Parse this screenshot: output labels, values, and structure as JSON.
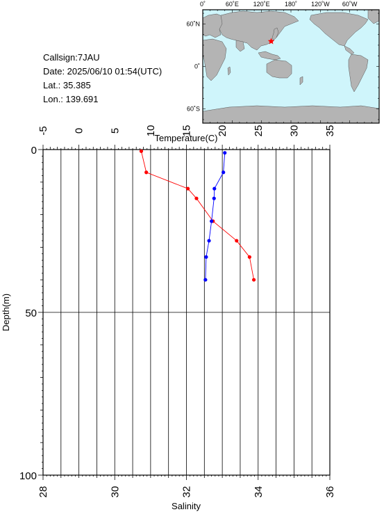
{
  "info": {
    "callsign": "Callsign:7JAU",
    "date": "Date:  2025/06/10 01:54(UTC)",
    "lat": "Lat.:  35.385",
    "lon": "Lon.:  139.691"
  },
  "map": {
    "top_labels": [
      "0˚",
      "60˚E",
      "120˚E",
      "180˚",
      "120˚W",
      "60˚W"
    ],
    "lat_labels": [
      "60˚N",
      "0˚",
      "60˚S"
    ],
    "ocean_color": "#cff5fb",
    "land_color": "#b4b4b4",
    "marker_color": "#ff0000",
    "marker": {
      "lat": 35.385,
      "lon": 139.691
    }
  },
  "chart_data": {
    "type": "line",
    "ylabel": "Depth(m)",
    "ylim": [
      0,
      100
    ],
    "y_inverted": true,
    "y_ticks": [
      "0",
      "50",
      "100"
    ],
    "top_axis": {
      "label": "Temperature(C)",
      "lim": [
        -5,
        35
      ],
      "ticks": [
        "-5",
        "0",
        "5",
        "10",
        "15",
        "20",
        "25",
        "30",
        "35"
      ]
    },
    "bottom_axis": {
      "label": "Salinity",
      "lim": [
        28,
        36
      ],
      "ticks": [
        "28",
        "30",
        "32",
        "34",
        "36"
      ]
    },
    "grid": true,
    "series": [
      {
        "axis": "top",
        "color": "#ff0000",
        "points": [
          {
            "x": 8.7,
            "y": 0.5
          },
          {
            "x": 9.4,
            "y": 7
          },
          {
            "x": 15.2,
            "y": 12
          },
          {
            "x": 16.4,
            "y": 15
          },
          {
            "x": 18.7,
            "y": 22
          },
          {
            "x": 22.0,
            "y": 28
          },
          {
            "x": 23.8,
            "y": 33
          },
          {
            "x": 24.4,
            "y": 40
          }
        ]
      },
      {
        "axis": "bottom",
        "color": "#0000ff",
        "points": [
          {
            "x": 33.07,
            "y": 1
          },
          {
            "x": 33.03,
            "y": 7
          },
          {
            "x": 32.78,
            "y": 12
          },
          {
            "x": 32.77,
            "y": 15
          },
          {
            "x": 32.7,
            "y": 22
          },
          {
            "x": 32.63,
            "y": 28
          },
          {
            "x": 32.55,
            "y": 33
          },
          {
            "x": 32.53,
            "y": 40
          }
        ]
      }
    ]
  }
}
